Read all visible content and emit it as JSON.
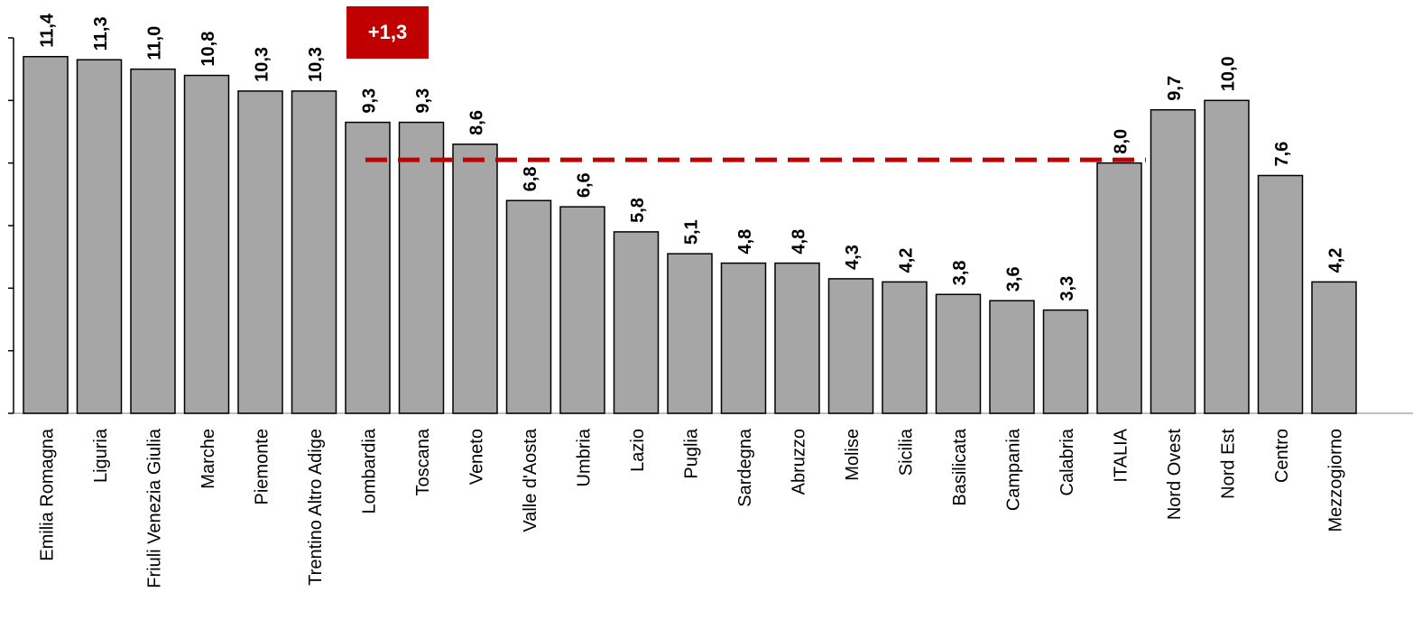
{
  "chart_data": {
    "type": "bar",
    "categories": [
      "Emilia Romagna",
      "Liguria",
      "Friuli Venezia Giulia",
      "Marche",
      "Piemonte",
      "Trentino Altro Adige",
      "Lombardia",
      "Toscana",
      "Veneto",
      "Valle d'Aosta",
      "Umbria",
      "Lazio",
      "Puglia",
      "Sardegna",
      "Abruzzo",
      "Molise",
      "Sicilia",
      "Basilicata",
      "Campania",
      "Calabria",
      "ITALIA",
      "Nord Ovest",
      "Nord Est",
      "Centro",
      "Mezzogiorno"
    ],
    "values": [
      11.4,
      11.3,
      11.0,
      10.8,
      10.3,
      10.3,
      9.3,
      9.3,
      8.6,
      6.8,
      6.6,
      5.8,
      5.1,
      4.8,
      4.8,
      4.3,
      4.2,
      3.8,
      3.6,
      3.3,
      8.0,
      9.7,
      10.0,
      7.6,
      4.2
    ],
    "value_labels": [
      "11,4",
      "11,3",
      "11,0",
      "10,8",
      "10,3",
      "10,3",
      "9,3",
      "9,3",
      "8,6",
      "6,8",
      "6,6",
      "5,8",
      "5,1",
      "4,8",
      "4,8",
      "4,3",
      "4,2",
      "3,8",
      "3,6",
      "3,3",
      "8,0",
      "9,7",
      "10,0",
      "7,6",
      "4,2"
    ],
    "ylim": [
      0,
      12
    ],
    "reference_line": 8.1,
    "annotation": "+1,3",
    "colors": {
      "bar": "#a6a6a6",
      "bar_border": "#000000",
      "reference": "#c00000",
      "annotation_bg": "#c00000",
      "axis": "#000000",
      "baseline": "#bfbfbf"
    }
  }
}
